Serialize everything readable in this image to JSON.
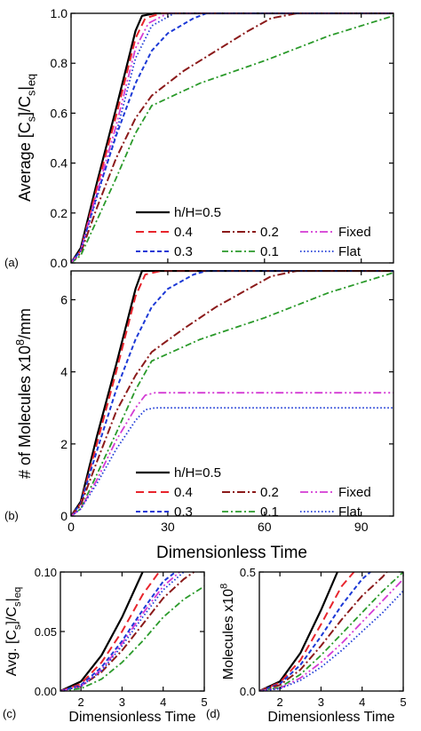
{
  "xlabel_shared": "Dimensionless Time",
  "legend": {
    "header": "h/H=0.5",
    "items": [
      "0.4",
      "0.2",
      "Fixed",
      "0.3",
      "0.1",
      "Flat"
    ]
  },
  "colors": {
    "h05": "#000000",
    "h04": "#e8242c",
    "h02": "#8b1a1a",
    "fixed": "#d43bd4",
    "h03": "#1c39d6",
    "h01": "#2a9a2a",
    "flat": "#1c39d6"
  },
  "chart_data": [
    {
      "id": "a",
      "type": "line",
      "panel_label": "(a)",
      "ylabel": "Average [C_s]/C_s|eq",
      "xlim": [
        0,
        100
      ],
      "ylim": [
        0,
        1.0
      ],
      "yticks": [
        "0.0",
        "0.2",
        "0.4",
        "0.6",
        "0.8",
        "1.0"
      ],
      "series": [
        {
          "name": "h/H=0.5",
          "x": [
            0,
            3,
            8,
            14,
            20,
            22,
            26,
            100
          ],
          "y": [
            0,
            0.06,
            0.32,
            0.62,
            0.93,
            0.99,
            1.0,
            1.0
          ]
        },
        {
          "name": "0.4",
          "x": [
            0,
            3,
            8,
            14,
            20,
            23,
            28,
            100
          ],
          "y": [
            0,
            0.05,
            0.3,
            0.59,
            0.9,
            0.98,
            1.0,
            1.0
          ]
        },
        {
          "name": "0.3",
          "x": [
            0,
            3,
            8,
            14,
            20,
            25,
            30,
            38,
            42,
            100
          ],
          "y": [
            0,
            0.05,
            0.27,
            0.51,
            0.72,
            0.85,
            0.92,
            0.98,
            1.0,
            1.0
          ]
        },
        {
          "name": "0.2",
          "x": [
            0,
            3,
            8,
            14,
            20,
            25,
            35,
            45,
            55,
            62,
            70,
            100
          ],
          "y": [
            0,
            0.04,
            0.22,
            0.42,
            0.58,
            0.67,
            0.77,
            0.85,
            0.93,
            0.98,
            1.0,
            1.0
          ]
        },
        {
          "name": "0.1",
          "x": [
            0,
            3,
            8,
            14,
            20,
            25,
            40,
            60,
            80,
            100
          ],
          "y": [
            0,
            0.03,
            0.17,
            0.34,
            0.52,
            0.63,
            0.72,
            0.81,
            0.91,
            0.99
          ]
        },
        {
          "name": "Fixed",
          "x": [
            0,
            3,
            8,
            14,
            20,
            24,
            30,
            100
          ],
          "y": [
            0,
            0.05,
            0.28,
            0.55,
            0.86,
            0.96,
            1.0,
            1.0
          ]
        },
        {
          "name": "Flat",
          "x": [
            0,
            3,
            8,
            14,
            20,
            25,
            32,
            100
          ],
          "y": [
            0,
            0.05,
            0.26,
            0.52,
            0.82,
            0.95,
            1.0,
            1.0
          ]
        }
      ]
    },
    {
      "id": "b",
      "type": "line",
      "panel_label": "(b)",
      "ylabel": "# of Molecules x10^8/mm",
      "xlim": [
        0,
        100
      ],
      "ylim": [
        0,
        6.8
      ],
      "xticks": [
        "0",
        "30",
        "60",
        "90"
      ],
      "yticks": [
        "0",
        "2",
        "4",
        "6"
      ],
      "series": [
        {
          "name": "h/H=0.5",
          "x": [
            0,
            3,
            8,
            14,
            20,
            22,
            26,
            100
          ],
          "y": [
            0,
            0.4,
            2.2,
            4.2,
            6.3,
            6.8,
            6.8,
            6.8
          ]
        },
        {
          "name": "0.4",
          "x": [
            0,
            3,
            8,
            14,
            20,
            23,
            28,
            100
          ],
          "y": [
            0,
            0.35,
            2.0,
            4.0,
            6.1,
            6.7,
            6.8,
            6.8
          ]
        },
        {
          "name": "0.3",
          "x": [
            0,
            3,
            8,
            14,
            20,
            25,
            30,
            38,
            42,
            100
          ],
          "y": [
            0,
            0.35,
            1.8,
            3.5,
            4.9,
            5.8,
            6.3,
            6.7,
            6.8,
            6.8
          ]
        },
        {
          "name": "0.2",
          "x": [
            0,
            3,
            8,
            14,
            20,
            25,
            35,
            45,
            55,
            62,
            70,
            100
          ],
          "y": [
            0,
            0.3,
            1.5,
            2.9,
            3.9,
            4.55,
            5.2,
            5.8,
            6.3,
            6.65,
            6.8,
            6.8
          ]
        },
        {
          "name": "0.1",
          "x": [
            0,
            3,
            8,
            14,
            20,
            25,
            40,
            60,
            80,
            100
          ],
          "y": [
            0,
            0.2,
            1.15,
            2.3,
            3.5,
            4.3,
            4.9,
            5.5,
            6.2,
            6.75
          ]
        },
        {
          "name": "Fixed",
          "x": [
            0,
            3,
            8,
            14,
            20,
            23,
            26,
            100
          ],
          "y": [
            0,
            0.2,
            1.0,
            2.1,
            3.0,
            3.35,
            3.42,
            3.42
          ]
        },
        {
          "name": "Flat",
          "x": [
            0,
            3,
            8,
            14,
            20,
            23,
            26,
            100
          ],
          "y": [
            0,
            0.2,
            0.9,
            1.85,
            2.65,
            2.95,
            3.0,
            3.0
          ]
        }
      ]
    },
    {
      "id": "c",
      "type": "line",
      "panel_label": "(c)",
      "ylabel": "Avg. [C_s]/C_s|eq",
      "xlabel": "Dimensionless Time",
      "xlim": [
        1.5,
        5
      ],
      "ylim": [
        0,
        0.1
      ],
      "xticks": [
        "2",
        "3",
        "4",
        "5"
      ],
      "yticks": [
        "0.00",
        "0.05",
        "0.10"
      ],
      "series": [
        {
          "name": "h/H=0.5",
          "x": [
            1.5,
            2,
            2.5,
            3,
            3.5
          ],
          "y": [
            0,
            0.008,
            0.03,
            0.062,
            0.1
          ]
        },
        {
          "name": "0.4",
          "x": [
            1.5,
            2,
            2.5,
            3,
            3.5,
            3.9
          ],
          "y": [
            0,
            0.006,
            0.024,
            0.05,
            0.081,
            0.1
          ]
        },
        {
          "name": "0.3",
          "x": [
            1.5,
            2,
            2.5,
            3,
            3.5,
            4,
            4.3
          ],
          "y": [
            0,
            0.005,
            0.02,
            0.042,
            0.068,
            0.092,
            0.1
          ]
        },
        {
          "name": "0.2",
          "x": [
            1.5,
            2,
            2.5,
            3,
            3.5,
            4,
            4.5,
            4.75
          ],
          "y": [
            0,
            0.004,
            0.016,
            0.034,
            0.056,
            0.078,
            0.094,
            0.1
          ]
        },
        {
          "name": "0.1",
          "x": [
            1.5,
            2,
            2.5,
            3,
            3.5,
            4,
            4.5,
            5
          ],
          "y": [
            0,
            0.002,
            0.01,
            0.024,
            0.042,
            0.062,
            0.077,
            0.088
          ]
        },
        {
          "name": "Fixed",
          "x": [
            1.5,
            2,
            2.5,
            3,
            3.5,
            4,
            4.4
          ],
          "y": [
            0,
            0.004,
            0.018,
            0.04,
            0.065,
            0.088,
            0.1
          ]
        },
        {
          "name": "Flat",
          "x": [
            1.5,
            2,
            2.5,
            3,
            3.5,
            4,
            4.5
          ],
          "y": [
            0,
            0.004,
            0.017,
            0.038,
            0.062,
            0.085,
            0.1
          ]
        }
      ]
    },
    {
      "id": "d",
      "type": "line",
      "panel_label": "(d)",
      "ylabel": "Molecules x10^8",
      "xlabel": "Dimensionless Time",
      "xlim": [
        1.5,
        5
      ],
      "ylim": [
        0,
        0.5
      ],
      "xticks": [
        "2",
        "3",
        "4",
        "5"
      ],
      "yticks": [
        "0.0",
        "0.5"
      ],
      "series": [
        {
          "name": "h/H=0.5",
          "x": [
            1.5,
            2,
            2.5,
            3,
            3.4
          ],
          "y": [
            0,
            0.04,
            0.16,
            0.34,
            0.5
          ]
        },
        {
          "name": "0.4",
          "x": [
            1.5,
            2,
            2.5,
            3,
            3.5,
            3.8
          ],
          "y": [
            0,
            0.035,
            0.13,
            0.28,
            0.44,
            0.5
          ]
        },
        {
          "name": "0.3",
          "x": [
            1.5,
            2,
            2.5,
            3,
            3.5,
            4,
            4.2
          ],
          "y": [
            0,
            0.03,
            0.11,
            0.23,
            0.36,
            0.47,
            0.5
          ]
        },
        {
          "name": "0.2",
          "x": [
            1.5,
            2,
            2.5,
            3,
            3.5,
            4,
            4.5,
            4.6
          ],
          "y": [
            0,
            0.025,
            0.09,
            0.19,
            0.3,
            0.4,
            0.48,
            0.5
          ]
        },
        {
          "name": "0.1",
          "x": [
            1.5,
            2,
            2.5,
            3,
            3.5,
            4,
            4.5,
            5
          ],
          "y": [
            0,
            0.015,
            0.07,
            0.15,
            0.24,
            0.33,
            0.42,
            0.5
          ]
        },
        {
          "name": "Fixed",
          "x": [
            1.5,
            2,
            2.5,
            3,
            3.5,
            4,
            4.5,
            5
          ],
          "y": [
            0,
            0.012,
            0.055,
            0.12,
            0.2,
            0.29,
            0.38,
            0.47
          ]
        },
        {
          "name": "Flat",
          "x": [
            1.5,
            2,
            2.5,
            3,
            3.5,
            4,
            4.5,
            5
          ],
          "y": [
            0,
            0.01,
            0.045,
            0.1,
            0.17,
            0.25,
            0.33,
            0.42
          ]
        }
      ]
    }
  ]
}
